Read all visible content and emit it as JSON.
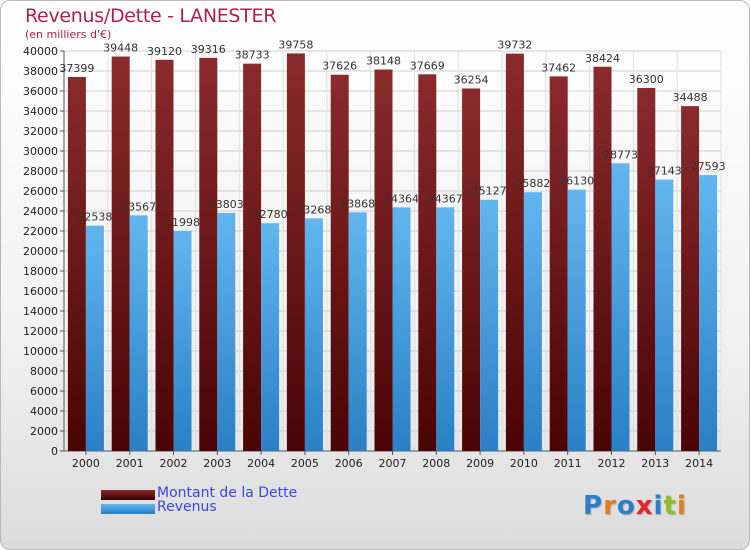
{
  "title": "Revenus/Dette - LANESTER",
  "subtitle": "(en milliers d'€)",
  "colors": {
    "debt": "#7a1c1f",
    "debt_dark": "#4e0708",
    "revenue": "#5aaee8",
    "revenue_dark": "#2f86cc",
    "title": "#b01e4e",
    "legend_text": "#3b48d8"
  },
  "legend": {
    "debt": "Montant de la Dette",
    "revenue": "Revenus"
  },
  "logo": {
    "text": "Proxiti",
    "letters": [
      {
        "ch": "P",
        "color": "#2a7fc8"
      },
      {
        "ch": "r",
        "color": "#e57d1f"
      },
      {
        "ch": "o",
        "color": "#2a7fc8"
      },
      {
        "ch": "x",
        "color": "#e2262a"
      },
      {
        "ch": "i",
        "color": "#2a7fc8"
      },
      {
        "ch": "t",
        "color": "#8cbf26"
      },
      {
        "ch": "i",
        "color": "#e57d1f"
      }
    ]
  },
  "chart_data": {
    "type": "bar",
    "title": "Revenus/Dette - LANESTER",
    "subtitle": "(en milliers d'€)",
    "categories": [
      "2000",
      "2001",
      "2002",
      "2003",
      "2004",
      "2005",
      "2006",
      "2007",
      "2008",
      "2009",
      "2010",
      "2011",
      "2012",
      "2013",
      "2014"
    ],
    "series": [
      {
        "name": "Montant de la Dette",
        "values": [
          37399,
          39448,
          39120,
          39316,
          38733,
          39758,
          37626,
          38148,
          37669,
          36254,
          39732,
          37462,
          38424,
          36300,
          34488
        ]
      },
      {
        "name": "Revenus",
        "values": [
          22538,
          23567,
          21998,
          23803,
          22780,
          23268,
          23868,
          24364,
          24367,
          25127,
          25882,
          26130,
          28773,
          27143,
          27593
        ]
      }
    ],
    "ylim": [
      0,
      40000
    ],
    "yticks": [
      0,
      2000,
      4000,
      6000,
      8000,
      10000,
      12000,
      14000,
      16000,
      18000,
      20000,
      22000,
      24000,
      26000,
      28000,
      30000,
      32000,
      34000,
      36000,
      38000,
      40000
    ],
    "grid": true,
    "legend_position": "bottom-left"
  }
}
